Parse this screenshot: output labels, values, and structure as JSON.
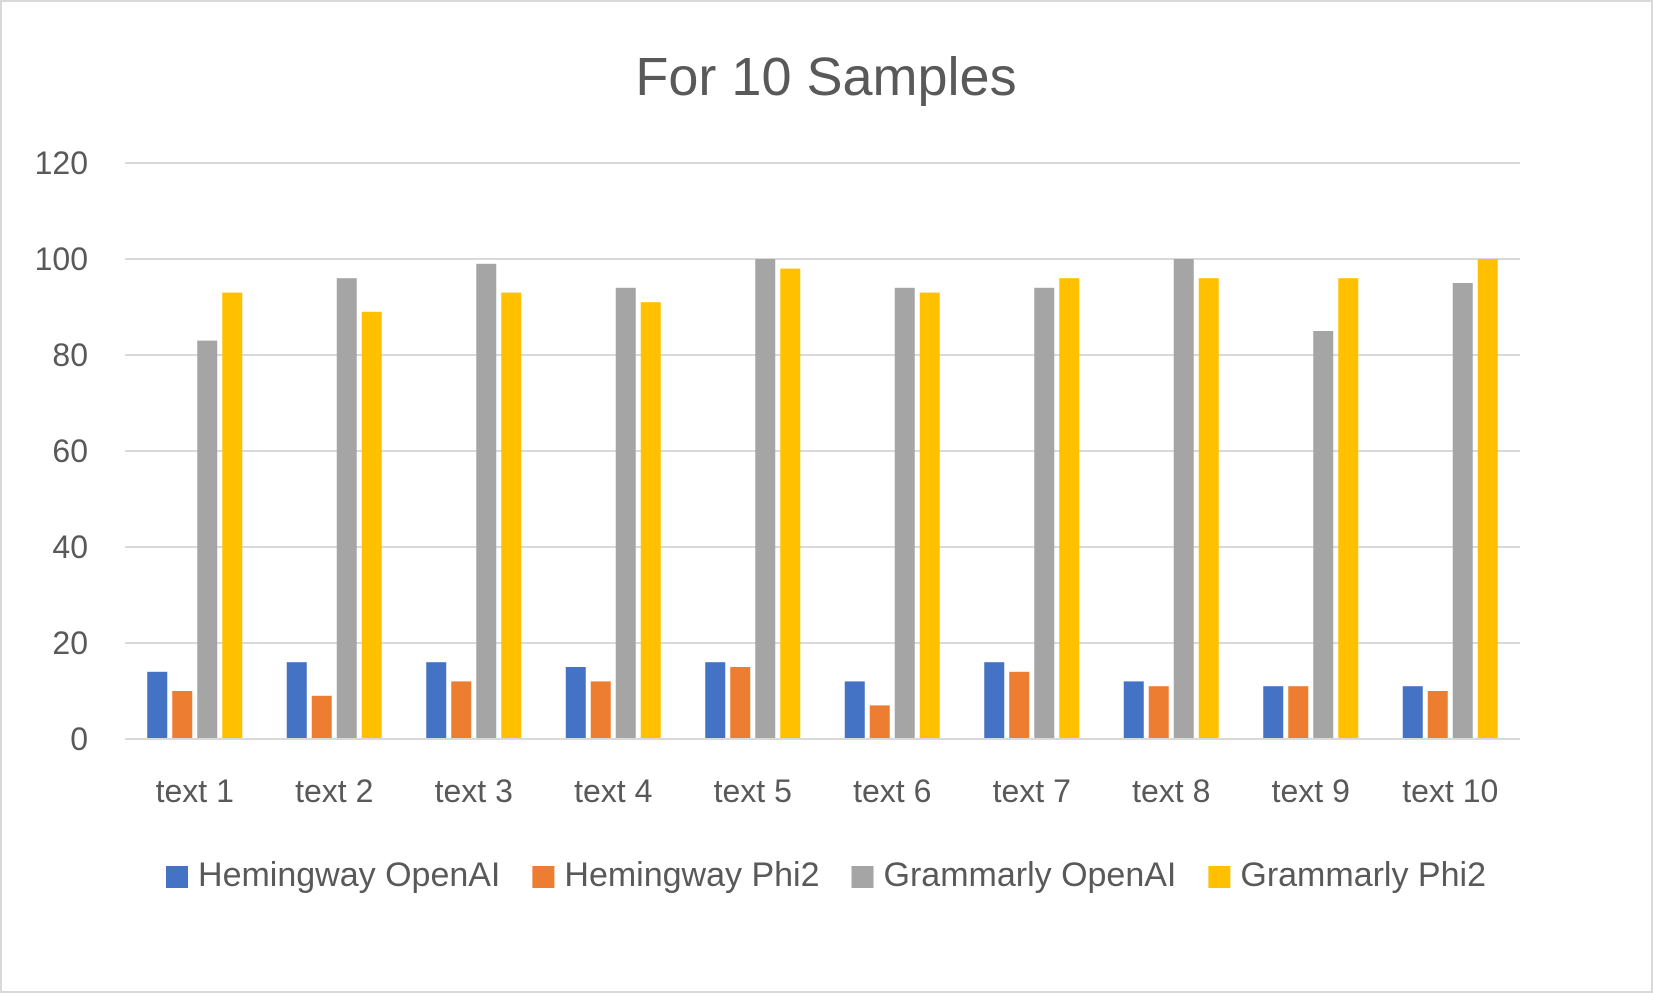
{
  "chart_data": {
    "type": "bar",
    "title": "For 10 Samples",
    "xlabel": "",
    "ylabel": "",
    "ylim": [
      0,
      120
    ],
    "yticks": [
      0,
      20,
      40,
      60,
      80,
      100,
      120
    ],
    "grid": true,
    "legend_position": "bottom",
    "categories": [
      "text 1",
      "text 2",
      "text 3",
      "text 4",
      "text 5",
      "text 6",
      "text 7",
      "text 8",
      "text 9",
      "text 10"
    ],
    "series": [
      {
        "name": "Hemingway OpenAI",
        "color": "#4472C4",
        "values": [
          14,
          16,
          16,
          15,
          16,
          12,
          16,
          12,
          11,
          11
        ]
      },
      {
        "name": "Hemingway Phi2",
        "color": "#ED7D31",
        "values": [
          10,
          9,
          12,
          12,
          15,
          7,
          14,
          11,
          11,
          10
        ]
      },
      {
        "name": "Grammarly OpenAI",
        "color": "#A5A5A5",
        "values": [
          83,
          96,
          99,
          94,
          100,
          94,
          94,
          100,
          85,
          95
        ]
      },
      {
        "name": "Grammarly Phi2",
        "color": "#FFC000",
        "values": [
          93,
          89,
          93,
          91,
          98,
          93,
          96,
          96,
          96,
          100
        ]
      }
    ]
  }
}
